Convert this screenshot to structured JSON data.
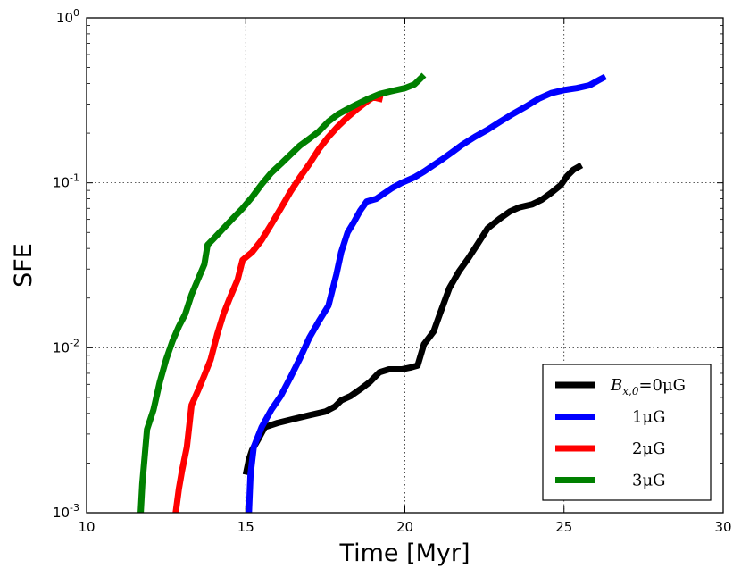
{
  "chart_data": {
    "type": "line",
    "xlabel": "Time [Myr]",
    "ylabel": "SFE",
    "xlim": [
      10,
      30
    ],
    "ylim": [
      0.001,
      1
    ],
    "yscale": "log",
    "grid": true,
    "legend_position": "bottom-right",
    "x_ticks": [
      {
        "value": 10,
        "label": "10"
      },
      {
        "value": 15,
        "label": "15"
      },
      {
        "value": 20,
        "label": "20"
      },
      {
        "value": 25,
        "label": "25"
      },
      {
        "value": 30,
        "label": "30"
      }
    ],
    "y_ticks": [
      {
        "value": 0.001,
        "base": "10",
        "exp": "-3"
      },
      {
        "value": 0.01,
        "base": "10",
        "exp": "-2"
      },
      {
        "value": 0.1,
        "base": "10",
        "exp": "-1"
      },
      {
        "value": 1,
        "base": "10",
        "exp": "0"
      }
    ],
    "series": [
      {
        "name": "B_x,0 = 0 μG",
        "legend_label": "B",
        "legend_sub": "x,0",
        "legend_rest": "=0μG",
        "color": "#000000",
        "points": [
          [
            15.0,
            0.0017
          ],
          [
            15.1,
            0.0021
          ],
          [
            15.2,
            0.0024
          ],
          [
            15.4,
            0.0028
          ],
          [
            15.6,
            0.0033
          ],
          [
            16.0,
            0.0035
          ],
          [
            16.5,
            0.0037
          ],
          [
            17.0,
            0.0039
          ],
          [
            17.5,
            0.0041
          ],
          [
            17.8,
            0.0044
          ],
          [
            18.0,
            0.0048
          ],
          [
            18.3,
            0.0051
          ],
          [
            18.6,
            0.0056
          ],
          [
            18.9,
            0.0062
          ],
          [
            19.2,
            0.0071
          ],
          [
            19.5,
            0.0074
          ],
          [
            19.9,
            0.0074
          ],
          [
            20.2,
            0.0076
          ],
          [
            20.4,
            0.0078
          ],
          [
            20.6,
            0.0105
          ],
          [
            20.9,
            0.0125
          ],
          [
            21.1,
            0.016
          ],
          [
            21.4,
            0.023
          ],
          [
            21.7,
            0.029
          ],
          [
            22.0,
            0.035
          ],
          [
            22.3,
            0.043
          ],
          [
            22.6,
            0.053
          ],
          [
            23.0,
            0.061
          ],
          [
            23.3,
            0.067
          ],
          [
            23.6,
            0.071
          ],
          [
            24.0,
            0.074
          ],
          [
            24.3,
            0.079
          ],
          [
            24.6,
            0.087
          ],
          [
            24.9,
            0.097
          ],
          [
            25.1,
            0.11
          ],
          [
            25.3,
            0.12
          ],
          [
            25.55,
            0.128
          ]
        ]
      },
      {
        "name": "1 μG",
        "legend_label": "1μG",
        "color": "#0000ff",
        "points": [
          [
            15.1,
            0.001
          ],
          [
            15.15,
            0.0017
          ],
          [
            15.25,
            0.0025
          ],
          [
            15.5,
            0.0033
          ],
          [
            15.8,
            0.0042
          ],
          [
            16.1,
            0.0051
          ],
          [
            16.4,
            0.0066
          ],
          [
            16.7,
            0.0086
          ],
          [
            17.0,
            0.0115
          ],
          [
            17.3,
            0.0145
          ],
          [
            17.6,
            0.018
          ],
          [
            17.85,
            0.028
          ],
          [
            18.0,
            0.038
          ],
          [
            18.2,
            0.05
          ],
          [
            18.4,
            0.058
          ],
          [
            18.6,
            0.068
          ],
          [
            18.8,
            0.077
          ],
          [
            19.1,
            0.08
          ],
          [
            19.3,
            0.085
          ],
          [
            19.6,
            0.093
          ],
          [
            19.9,
            0.1
          ],
          [
            20.3,
            0.108
          ],
          [
            20.6,
            0.117
          ],
          [
            20.9,
            0.128
          ],
          [
            21.2,
            0.14
          ],
          [
            21.5,
            0.154
          ],
          [
            21.8,
            0.17
          ],
          [
            22.2,
            0.19
          ],
          [
            22.6,
            0.21
          ],
          [
            23.0,
            0.235
          ],
          [
            23.4,
            0.262
          ],
          [
            23.8,
            0.29
          ],
          [
            24.2,
            0.323
          ],
          [
            24.6,
            0.35
          ],
          [
            25.0,
            0.365
          ],
          [
            25.4,
            0.375
          ],
          [
            25.8,
            0.39
          ],
          [
            26.1,
            0.42
          ],
          [
            26.3,
            0.44
          ]
        ]
      },
      {
        "name": "2 μG",
        "legend_label": "2μG",
        "color": "#ff0000",
        "points": [
          [
            12.8,
            0.001
          ],
          [
            12.9,
            0.0014
          ],
          [
            13.0,
            0.0018
          ],
          [
            13.15,
            0.0025
          ],
          [
            13.3,
            0.0045
          ],
          [
            13.5,
            0.0055
          ],
          [
            13.7,
            0.0068
          ],
          [
            13.9,
            0.0085
          ],
          [
            14.1,
            0.012
          ],
          [
            14.3,
            0.016
          ],
          [
            14.5,
            0.02
          ],
          [
            14.75,
            0.026
          ],
          [
            14.9,
            0.034
          ],
          [
            15.2,
            0.038
          ],
          [
            15.5,
            0.045
          ],
          [
            15.8,
            0.056
          ],
          [
            16.1,
            0.07
          ],
          [
            16.4,
            0.088
          ],
          [
            16.7,
            0.108
          ],
          [
            17.0,
            0.13
          ],
          [
            17.3,
            0.16
          ],
          [
            17.6,
            0.19
          ],
          [
            17.9,
            0.22
          ],
          [
            18.2,
            0.25
          ],
          [
            18.5,
            0.28
          ],
          [
            18.8,
            0.31
          ],
          [
            19.0,
            0.33
          ],
          [
            19.3,
            0.32
          ]
        ]
      },
      {
        "name": "3 μG",
        "legend_label": "3μG",
        "color": "#008000",
        "points": [
          [
            11.7,
            0.001
          ],
          [
            11.75,
            0.0015
          ],
          [
            11.9,
            0.0032
          ],
          [
            12.1,
            0.0042
          ],
          [
            12.3,
            0.0062
          ],
          [
            12.5,
            0.0085
          ],
          [
            12.7,
            0.011
          ],
          [
            12.9,
            0.0135
          ],
          [
            13.1,
            0.016
          ],
          [
            13.3,
            0.021
          ],
          [
            13.5,
            0.026
          ],
          [
            13.7,
            0.032
          ],
          [
            13.8,
            0.042
          ],
          [
            14.0,
            0.046
          ],
          [
            14.3,
            0.053
          ],
          [
            14.6,
            0.061
          ],
          [
            14.9,
            0.07
          ],
          [
            15.2,
            0.082
          ],
          [
            15.5,
            0.098
          ],
          [
            15.8,
            0.115
          ],
          [
            16.1,
            0.13
          ],
          [
            16.4,
            0.148
          ],
          [
            16.7,
            0.168
          ],
          [
            17.0,
            0.185
          ],
          [
            17.3,
            0.205
          ],
          [
            17.6,
            0.235
          ],
          [
            17.9,
            0.26
          ],
          [
            18.2,
            0.28
          ],
          [
            18.5,
            0.3
          ],
          [
            18.8,
            0.32
          ],
          [
            19.2,
            0.345
          ],
          [
            19.6,
            0.36
          ],
          [
            20.0,
            0.375
          ],
          [
            20.3,
            0.395
          ],
          [
            20.5,
            0.43
          ],
          [
            20.6,
            0.45
          ]
        ]
      }
    ]
  }
}
